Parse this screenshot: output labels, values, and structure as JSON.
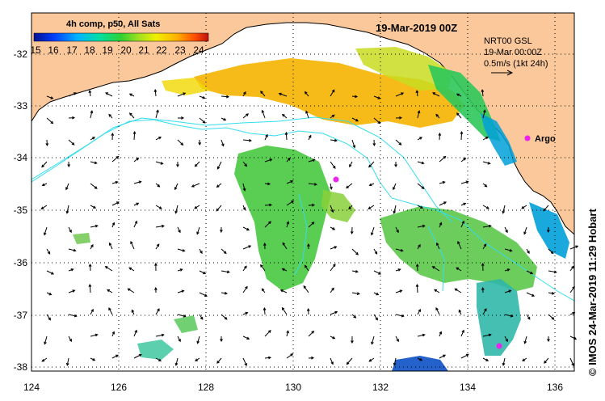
{
  "colorbar": {
    "title": "4h comp, p50, All Sats",
    "ticks": [
      "15",
      "16",
      "17",
      "18",
      "19",
      "20",
      "21",
      "22",
      "23",
      "24"
    ]
  },
  "timestamp": "19-Mar-2019 00Z",
  "current_legend": {
    "line1": "NRT00 GSL",
    "line2": "19-Mar 00:00Z",
    "line3": "0.5m/s (1kt 24h)"
  },
  "float_label": "Argo",
  "credit": "© IMOS 24-Mar-2019 11:29 Hobart",
  "axes": {
    "x_ticks": [
      "124",
      "126",
      "128",
      "130",
      "132",
      "134",
      "136"
    ],
    "y_ticks": [
      "-32",
      "-33",
      "-34",
      "-35",
      "-36",
      "-37",
      "-38"
    ]
  },
  "colors": {
    "land": "#fac89a",
    "ocean": "#ffffff",
    "altimetry_contour": "#33ddee",
    "argo_marker": "#ee22ee"
  }
}
